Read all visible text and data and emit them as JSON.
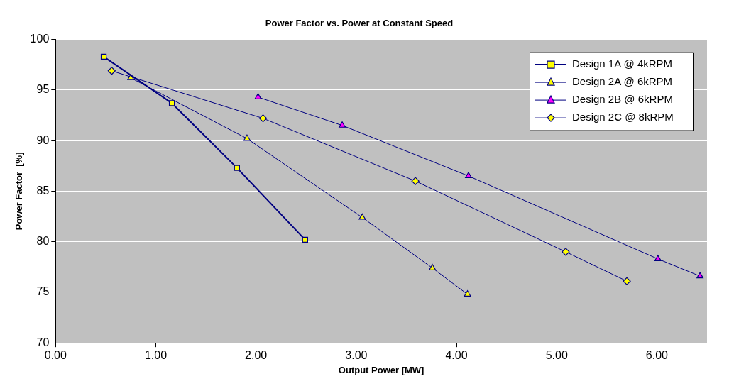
{
  "chart_data": {
    "type": "line",
    "title": "Power Factor vs. Power at Constant Speed",
    "xlabel": "Output Power [MW]",
    "ylabel": "Power Factor  [%]",
    "xlim": [
      0,
      6.5
    ],
    "xticks": [
      {
        "value": 0,
        "label": "0.00"
      },
      {
        "value": 1,
        "label": "1.00"
      },
      {
        "value": 2,
        "label": "2.00"
      },
      {
        "value": 3,
        "label": "3.00"
      },
      {
        "value": 4,
        "label": "4.00"
      },
      {
        "value": 5,
        "label": "5.00"
      },
      {
        "value": 6,
        "label": "6.00"
      }
    ],
    "ylim": [
      70,
      100
    ],
    "yticks": [
      70,
      75,
      80,
      85,
      90,
      95,
      100
    ],
    "grid": "y",
    "legend": "top right",
    "line_style": "solid",
    "series": [
      {
        "name": "Design 1A @ 4kRPM",
        "color": "#ffff00",
        "marker": "square",
        "x": [
          0.48,
          1.16,
          1.81,
          2.49
        ],
        "values": [
          98.3,
          93.7,
          87.3,
          80.2
        ]
      },
      {
        "name": "Design 2A @ 6kRPM",
        "color": "#ffff00",
        "marker": "triangle",
        "x": [
          0.75,
          1.91,
          3.06,
          3.76,
          4.11
        ],
        "values": [
          96.2,
          90.2,
          82.4,
          77.4,
          74.8
        ]
      },
      {
        "name": "Design 2B @ 6kRPM",
        "color": "#ff00ff",
        "marker": "triangle",
        "x": [
          2.02,
          2.86,
          4.12,
          6.01,
          6.43
        ],
        "values": [
          94.3,
          91.5,
          86.5,
          78.3,
          76.6
        ]
      },
      {
        "name": "Design 2C @ 8kRPM",
        "color": "#ffff00",
        "marker": "diamond",
        "x": [
          0.56,
          2.07,
          3.59,
          5.09,
          5.7
        ],
        "values": [
          96.9,
          92.2,
          86.0,
          79.0,
          76.1
        ]
      }
    ]
  }
}
